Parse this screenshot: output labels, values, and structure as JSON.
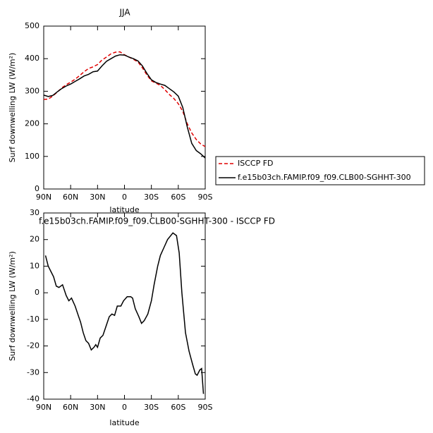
{
  "chart_data": [
    {
      "type": "line",
      "title": "JJA",
      "xlabel": "latitude",
      "ylabel": "Surf downwelling LW (W/m²)",
      "x": [
        90,
        85,
        80,
        75,
        70,
        65,
        60,
        55,
        50,
        45,
        40,
        35,
        30,
        25,
        20,
        15,
        10,
        5,
        0,
        -5,
        -10,
        -15,
        -20,
        -25,
        -30,
        -35,
        -40,
        -45,
        -50,
        -55,
        -60,
        -65,
        -70,
        -75,
        -80,
        -85,
        -90
      ],
      "series": [
        {
          "name": "ISCCP FD",
          "color": "#e00000",
          "dash": true,
          "values": [
            275,
            276,
            285,
            297,
            310,
            320,
            328,
            337,
            348,
            360,
            370,
            375,
            382,
            396,
            405,
            415,
            420,
            421,
            412,
            405,
            398,
            390,
            372,
            350,
            332,
            325,
            318,
            305,
            290,
            278,
            262,
            238,
            200,
            172,
            152,
            138,
            130
          ]
        },
        {
          "name": "f.e15b03ch.FAMIP.f09_f09.CLB00-SGHHT-300",
          "color": "#000000",
          "dash": false,
          "values": [
            288,
            284,
            287,
            298,
            308,
            316,
            322,
            330,
            338,
            347,
            352,
            360,
            362,
            378,
            392,
            400,
            408,
            412,
            411,
            405,
            400,
            393,
            378,
            355,
            335,
            327,
            322,
            318,
            308,
            298,
            285,
            250,
            190,
            140,
            118,
            108,
            95
          ]
        }
      ],
      "xlim": [
        90,
        -90
      ],
      "xticks": [
        {
          "value": 90,
          "label": "90N"
        },
        {
          "value": 60,
          "label": "60N"
        },
        {
          "value": 30,
          "label": "30N"
        },
        0,
        {
          "value": -30,
          "label": "30S"
        },
        {
          "value": -60,
          "label": "60S"
        },
        {
          "value": -90,
          "label": "90S"
        }
      ],
      "ylim": [
        0,
        500
      ],
      "yticks": [
        0,
        100,
        200,
        300,
        400,
        500
      ],
      "legend": "right"
    },
    {
      "type": "line",
      "title": "f.e15b03ch.FAMIP.f09_f09.CLB00-SGHHT-300 - ISCCP FD",
      "xlabel": "latitude",
      "ylabel": "Surf downwelling LW (W/m²)",
      "x": [
        88,
        85,
        82,
        79,
        76,
        73,
        69,
        65,
        62,
        59,
        55,
        51,
        49,
        46,
        43,
        40,
        37,
        34,
        32,
        30,
        27,
        24,
        21,
        17,
        14,
        11,
        8,
        4,
        1,
        -3,
        -7,
        -9,
        -12,
        -16,
        -19,
        -22,
        -26,
        -30,
        -33,
        -37,
        -40,
        -44,
        -48,
        -54,
        -58,
        -61,
        -64,
        -68,
        -72,
        -76,
        -79,
        -81,
        -84,
        -86,
        -88
      ],
      "series": [
        {
          "color": "#000000",
          "dash": false,
          "values": [
            14,
            10,
            8,
            6,
            2.5,
            2,
            3,
            -1,
            -3,
            -2,
            -5,
            -9,
            -11,
            -15,
            -18,
            -19,
            -21.5,
            -20.5,
            -19.5,
            -20.5,
            -17,
            -16,
            -13,
            -9,
            -8,
            -8.5,
            -5,
            -5,
            -3,
            -1.5,
            -1.5,
            -2,
            -6,
            -9,
            -11.5,
            -10.5,
            -8,
            -3,
            3,
            10,
            14,
            17,
            20,
            22.5,
            21.5,
            15,
            0,
            -15,
            -22,
            -27,
            -30.5,
            -31,
            -29,
            -28.5,
            -38
          ]
        }
      ],
      "xlim": [
        90,
        -90
      ],
      "xticks": [
        {
          "value": 90,
          "label": "90N"
        },
        {
          "value": 60,
          "label": "60N"
        },
        {
          "value": 30,
          "label": "30N"
        },
        0,
        {
          "value": -30,
          "label": "30S"
        },
        {
          "value": -60,
          "label": "60S"
        },
        {
          "value": -90,
          "label": "90S"
        }
      ],
      "ylim": [
        -40,
        30
      ],
      "yticks": [
        -40,
        -30,
        -20,
        -10,
        0,
        10,
        20,
        30
      ]
    }
  ]
}
